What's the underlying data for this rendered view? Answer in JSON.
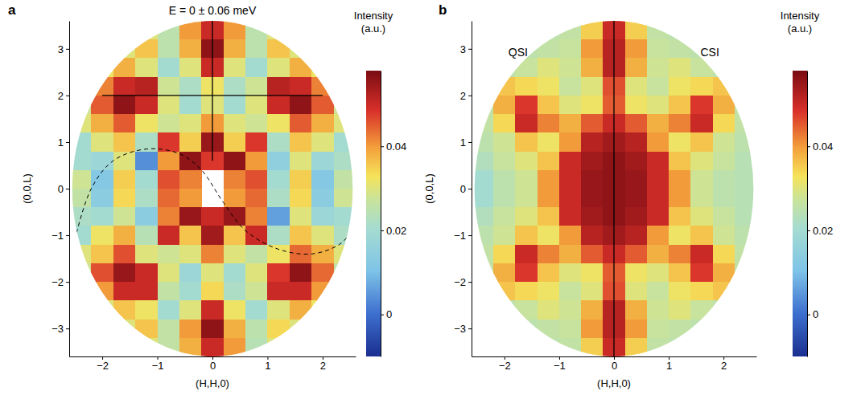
{
  "chart_data": [
    {
      "type": "heatmap",
      "panel_label": "a",
      "title": "E = 0 ± 0.06 meV",
      "x_label": "(H,H,0)",
      "y_label": "(0,0,L)",
      "xlim": [
        -2.6,
        2.6
      ],
      "ylim": [
        -3.6,
        3.6
      ],
      "q_max": 3.6,
      "xticks": [
        {
          "value": -2,
          "label": "−2"
        },
        {
          "value": -1,
          "label": "−1"
        },
        0,
        1,
        2
      ],
      "yticks": [
        {
          "value": -3,
          "label": "−3"
        },
        {
          "value": -2,
          "label": "−2"
        },
        {
          "value": -1,
          "label": "−1"
        },
        0,
        1,
        2,
        3
      ],
      "x": [
        -2.4,
        -2.0,
        -1.6,
        -1.2,
        -0.8,
        -0.4,
        0,
        0.4,
        0.8,
        1.2,
        1.6,
        2.0,
        2.4
      ],
      "y": [
        3.4,
        3.0,
        2.6,
        2.2,
        1.8,
        1.4,
        1.0,
        0.6,
        0.2,
        -0.2,
        -0.6,
        -1.0,
        -1.4,
        -1.8,
        -2.2,
        -2.6,
        -3.0,
        -3.4
      ],
      "z": [
        [
          null,
          null,
          null,
          0.03,
          0.025,
          0.04,
          0.05,
          0.04,
          0.025,
          0.03,
          null,
          null,
          null
        ],
        [
          null,
          null,
          0.03,
          0.036,
          0.025,
          0.038,
          0.056,
          0.038,
          0.025,
          0.036,
          0.03,
          null,
          null
        ],
        [
          null,
          0.032,
          0.038,
          0.03,
          0.02,
          0.03,
          0.05,
          0.03,
          0.02,
          0.03,
          0.038,
          0.032,
          null
        ],
        [
          null,
          0.042,
          0.05,
          0.052,
          0.028,
          0.022,
          0.032,
          0.022,
          0.028,
          0.052,
          0.05,
          0.042,
          null
        ],
        [
          0.028,
          0.045,
          0.056,
          0.05,
          0.03,
          0.02,
          0.03,
          0.02,
          0.03,
          0.05,
          0.056,
          0.045,
          0.028
        ],
        [
          0.03,
          0.038,
          0.045,
          0.032,
          0.028,
          0.03,
          0.04,
          0.03,
          0.028,
          0.032,
          0.045,
          0.038,
          0.03
        ],
        [
          0.02,
          0.03,
          0.036,
          0.022,
          0.048,
          0.035,
          0.055,
          0.035,
          0.048,
          0.022,
          0.036,
          0.03,
          0.02
        ],
        [
          0.02,
          0.018,
          0.03,
          0.004,
          0.04,
          0.056,
          0.048,
          0.056,
          0.04,
          0.015,
          0.03,
          0.018,
          0.022
        ],
        [
          0.028,
          0.012,
          0.035,
          0.02,
          0.046,
          0.042,
          null,
          0.042,
          0.046,
          0.02,
          0.035,
          0.012,
          0.026
        ],
        [
          0.026,
          0.014,
          0.034,
          0.022,
          0.044,
          0.04,
          null,
          0.04,
          0.044,
          0.022,
          0.034,
          0.014,
          0.028
        ],
        [
          0.022,
          0.02,
          0.028,
          0.014,
          0.042,
          0.055,
          0.05,
          0.055,
          0.042,
          0.006,
          0.03,
          0.018,
          0.02
        ],
        [
          0.02,
          0.032,
          0.038,
          0.024,
          0.05,
          0.036,
          0.054,
          0.036,
          0.05,
          0.022,
          0.036,
          0.03,
          0.022
        ],
        [
          0.03,
          0.036,
          0.046,
          0.03,
          0.028,
          0.03,
          0.042,
          0.03,
          0.026,
          0.032,
          0.044,
          0.038,
          0.03
        ],
        [
          0.028,
          0.046,
          0.055,
          0.05,
          0.03,
          0.018,
          0.03,
          0.02,
          0.03,
          0.048,
          0.056,
          0.044,
          0.026
        ],
        [
          null,
          0.04,
          0.05,
          0.05,
          0.026,
          0.02,
          0.034,
          0.022,
          0.028,
          0.05,
          0.05,
          0.04,
          null
        ],
        [
          null,
          0.03,
          0.036,
          0.032,
          0.02,
          0.03,
          0.05,
          0.032,
          0.02,
          0.03,
          0.038,
          0.032,
          null
        ],
        [
          null,
          null,
          0.03,
          0.036,
          0.026,
          0.04,
          0.056,
          0.038,
          0.025,
          0.034,
          0.03,
          null,
          null
        ],
        [
          null,
          null,
          null,
          0.03,
          0.026,
          0.038,
          0.05,
          0.04,
          0.024,
          0.03,
          null,
          null,
          null
        ]
      ],
      "lines": [
        {
          "x": [
            0,
            0
          ],
          "y": [
            0.6,
            3.6
          ],
          "line_style": "solid"
        },
        {
          "x": [
            -2,
            2
          ],
          "y": [
            2,
            2
          ],
          "line_style": "solid"
        },
        {
          "x": [
            -2.5,
            -2.2,
            -1.8,
            -1.2,
            -0.6,
            -0.2,
            0.2,
            0.6,
            1.2,
            1.8,
            2.3,
            2.55
          ],
          "y": [
            -1.1,
            0,
            0.6,
            0.85,
            0.75,
            0.4,
            -0.3,
            -0.9,
            -1.3,
            -1.4,
            -1.2,
            -0.9
          ],
          "line_style": "dashed"
        }
      ],
      "colorbar": {
        "title": [
          "Intensity",
          "(a.u.)"
        ],
        "range": [
          -0.01,
          0.058
        ],
        "ticks": [
          0,
          0.02,
          0.04
        ]
      }
    },
    {
      "type": "heatmap",
      "panel_label": "b",
      "x_label": "(H,H,0)",
      "y_label": "(0,0,L)",
      "xlim": [
        -2.6,
        2.6
      ],
      "ylim": [
        -3.6,
        3.6
      ],
      "q_max": 3.6,
      "xticks": [
        {
          "value": -2,
          "label": "−2"
        },
        {
          "value": -1,
          "label": "−1"
        },
        0,
        1,
        2
      ],
      "yticks": [
        {
          "value": -3,
          "label": "−3"
        },
        {
          "value": -2,
          "label": "−2"
        },
        {
          "value": -1,
          "label": "−1"
        },
        0,
        1,
        2,
        3
      ],
      "x": [
        -2.4,
        -2.0,
        -1.6,
        -1.2,
        -0.8,
        -0.4,
        0,
        0.4,
        0.8,
        1.2,
        1.6,
        2.0,
        2.4
      ],
      "y": [
        3.4,
        3.0,
        2.6,
        2.2,
        1.8,
        1.4,
        1.0,
        0.6,
        0.2,
        -0.2,
        -0.6,
        -1.0,
        -1.4,
        -1.8,
        -2.2,
        -2.6,
        -3.0,
        -3.4
      ],
      "z": [
        [
          null,
          null,
          null,
          0.025,
          0.026,
          0.035,
          0.05,
          0.035,
          0.026,
          0.025,
          null,
          null,
          null
        ],
        [
          null,
          null,
          0.025,
          0.026,
          0.027,
          0.04,
          0.052,
          0.04,
          0.027,
          0.026,
          0.025,
          null,
          null
        ],
        [
          null,
          0.025,
          0.027,
          0.03,
          0.028,
          0.038,
          0.052,
          0.038,
          0.028,
          0.03,
          0.027,
          0.025,
          null
        ],
        [
          null,
          0.036,
          0.034,
          0.032,
          0.027,
          0.03,
          0.046,
          0.03,
          0.027,
          0.032,
          0.034,
          0.036,
          null
        ],
        [
          0.026,
          0.038,
          0.048,
          0.036,
          0.03,
          0.032,
          0.045,
          0.032,
          0.03,
          0.036,
          0.048,
          0.038,
          0.026
        ],
        [
          0.026,
          0.034,
          0.05,
          0.042,
          0.038,
          0.045,
          0.05,
          0.045,
          0.038,
          0.042,
          0.05,
          0.034,
          0.026
        ],
        [
          0.025,
          0.028,
          0.036,
          0.032,
          0.04,
          0.052,
          0.054,
          0.052,
          0.04,
          0.032,
          0.036,
          0.028,
          0.025
        ],
        [
          0.023,
          0.027,
          0.03,
          0.036,
          0.05,
          0.054,
          0.056,
          0.054,
          0.05,
          0.036,
          0.03,
          0.027,
          0.024
        ],
        [
          0.02,
          0.025,
          0.028,
          0.04,
          0.05,
          0.055,
          0.056,
          0.055,
          0.05,
          0.04,
          0.028,
          0.025,
          0.024
        ],
        [
          0.02,
          0.025,
          0.028,
          0.04,
          0.05,
          0.055,
          0.056,
          0.055,
          0.05,
          0.04,
          0.028,
          0.025,
          0.024
        ],
        [
          0.023,
          0.027,
          0.03,
          0.036,
          0.05,
          0.054,
          0.056,
          0.054,
          0.05,
          0.036,
          0.03,
          0.027,
          0.024
        ],
        [
          0.025,
          0.028,
          0.036,
          0.032,
          0.04,
          0.052,
          0.054,
          0.052,
          0.04,
          0.032,
          0.036,
          0.028,
          0.025
        ],
        [
          0.026,
          0.034,
          0.05,
          0.042,
          0.038,
          0.045,
          0.05,
          0.045,
          0.038,
          0.042,
          0.05,
          0.034,
          0.026
        ],
        [
          0.026,
          0.038,
          0.048,
          0.036,
          0.03,
          0.032,
          0.045,
          0.032,
          0.03,
          0.036,
          0.048,
          0.038,
          0.026
        ],
        [
          null,
          0.036,
          0.034,
          0.032,
          0.027,
          0.03,
          0.046,
          0.03,
          0.027,
          0.032,
          0.034,
          0.036,
          null
        ],
        [
          null,
          0.025,
          0.027,
          0.03,
          0.028,
          0.038,
          0.052,
          0.038,
          0.028,
          0.03,
          0.027,
          0.025,
          null
        ],
        [
          null,
          null,
          0.025,
          0.026,
          0.027,
          0.04,
          0.052,
          0.04,
          0.027,
          0.026,
          0.025,
          null,
          null
        ],
        [
          null,
          null,
          null,
          0.025,
          0.026,
          0.035,
          0.05,
          0.035,
          0.026,
          0.025,
          null,
          null,
          null
        ]
      ],
      "lines": [
        {
          "x": [
            0,
            0
          ],
          "y": [
            -3.6,
            3.6
          ],
          "line_style": "solid"
        }
      ],
      "annotations": [
        {
          "text": "QSI",
          "x": -1.75,
          "y": 2.9
        },
        {
          "text": "CSI",
          "x": 1.75,
          "y": 2.9
        }
      ],
      "colorbar": {
        "title": [
          "Intensity",
          "(a.u.)"
        ],
        "range": [
          -0.01,
          0.058
        ],
        "ticks": [
          0,
          0.02,
          0.04
        ]
      }
    }
  ]
}
